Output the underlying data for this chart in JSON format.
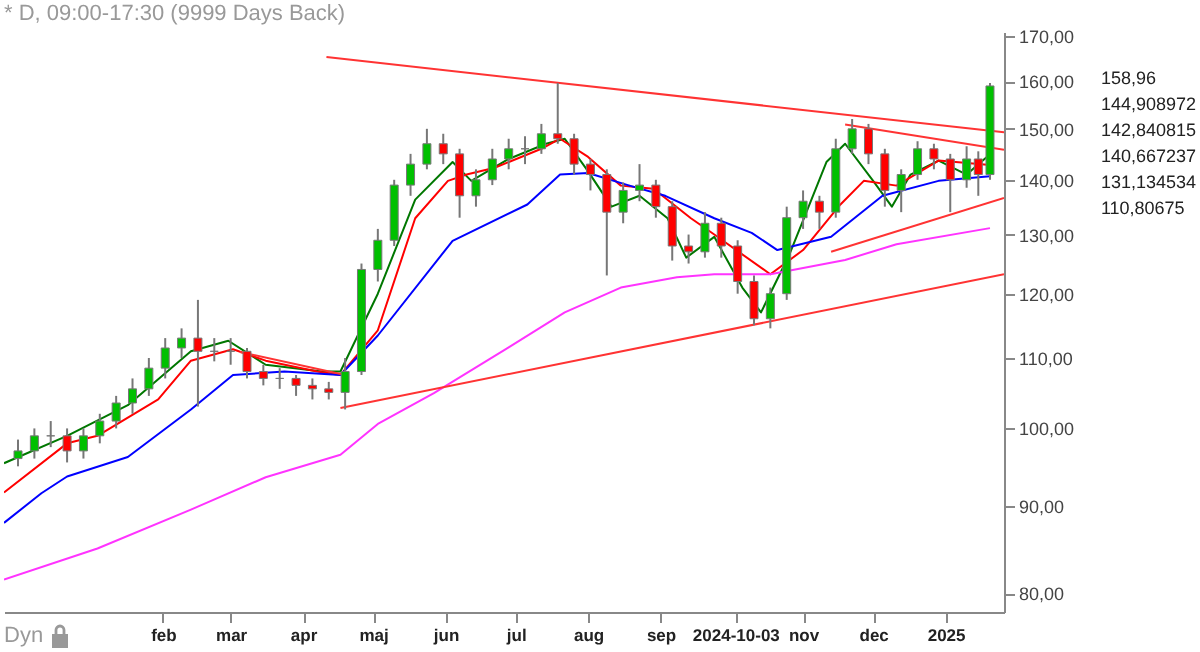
{
  "chart_data": {
    "type": "candlestick",
    "title": "* D, 09:00-17:30 (9999 Days Back)",
    "x": [
      "2023-12-01",
      "2023-12-08",
      "2023-12-15",
      "2023-12-22",
      "2023-12-29",
      "2024-01-05",
      "2024-01-12",
      "2024-01-19",
      "2024-01-26",
      "2024-02-02",
      "2024-02-09",
      "2024-02-16",
      "2024-02-23",
      "2024-03-01",
      "2024-03-08",
      "2024-03-15",
      "2024-03-22",
      "2024-03-29",
      "2024-04-05",
      "2024-04-12",
      "2024-04-19",
      "2024-04-26",
      "2024-05-03",
      "2024-05-10",
      "2024-05-17",
      "2024-05-24",
      "2024-05-31",
      "2024-06-07",
      "2024-06-14",
      "2024-06-21",
      "2024-06-28",
      "2024-07-05",
      "2024-07-12",
      "2024-07-19",
      "2024-07-26",
      "2024-08-02",
      "2024-08-09",
      "2024-08-16",
      "2024-08-23",
      "2024-08-30",
      "2024-09-06",
      "2024-09-13",
      "2024-09-20",
      "2024-09-27",
      "2024-10-04",
      "2024-10-11",
      "2024-10-18",
      "2024-10-25",
      "2024-11-01",
      "2024-11-08",
      "2024-11-15",
      "2024-11-22",
      "2024-11-29",
      "2024-12-06",
      "2024-12-13",
      "2024-12-20",
      "2024-12-27",
      "2025-01-03",
      "2025-01-10",
      "2025-01-15",
      "2025-01-20"
    ],
    "ohlc": [
      [
        96,
        98.5,
        95,
        97
      ],
      [
        97,
        100,
        96,
        99
      ],
      [
        99,
        101,
        97.5,
        99
      ],
      [
        99,
        100,
        95.5,
        97
      ],
      [
        97,
        100,
        96,
        99
      ],
      [
        99,
        102,
        98,
        101
      ],
      [
        101,
        104.5,
        100,
        103.5
      ],
      [
        103.5,
        107,
        102,
        105.5
      ],
      [
        105.5,
        110,
        104.5,
        108.5
      ],
      [
        108.5,
        113,
        107,
        111.5
      ],
      [
        111.5,
        114.5,
        110,
        113
      ],
      [
        113,
        119,
        103,
        111
      ],
      [
        111,
        113,
        109.5,
        111
      ],
      [
        111,
        113,
        109,
        111
      ],
      [
        111,
        111.5,
        107,
        108
      ],
      [
        108,
        109,
        106,
        107
      ],
      [
        107,
        108.5,
        105.5,
        107
      ],
      [
        107,
        107.5,
        104.5,
        106
      ],
      [
        106,
        107,
        104,
        105.5
      ],
      [
        105.5,
        106.5,
        104,
        105
      ],
      [
        105,
        110,
        102.6,
        108
      ],
      [
        108,
        125,
        107.5,
        124
      ],
      [
        124,
        131,
        122,
        129
      ],
      [
        129,
        140,
        128,
        139
      ],
      [
        139,
        145,
        137,
        143
      ],
      [
        143,
        150,
        142,
        147
      ],
      [
        147,
        149,
        143,
        145
      ],
      [
        145,
        146,
        133,
        137
      ],
      [
        137,
        142,
        135,
        140
      ],
      [
        140,
        146,
        139,
        144
      ],
      [
        144,
        148,
        142,
        146
      ],
      [
        146,
        148.5,
        143,
        146
      ],
      [
        146,
        151,
        145,
        149
      ],
      [
        149,
        159.6,
        147,
        148
      ],
      [
        148,
        149,
        141,
        143
      ],
      [
        143,
        144,
        138,
        141
      ],
      [
        141,
        142,
        123,
        134
      ],
      [
        134,
        139.5,
        132,
        138
      ],
      [
        138,
        143,
        136,
        139
      ],
      [
        139,
        140,
        133,
        135
      ],
      [
        135,
        136,
        125.5,
        128
      ],
      [
        128,
        130,
        125,
        127
      ],
      [
        127,
        134,
        126,
        132
      ],
      [
        132,
        133,
        126,
        128
      ],
      [
        128,
        129,
        120,
        122
      ],
      [
        122,
        123,
        115,
        116
      ],
      [
        116,
        121,
        114.5,
        120
      ],
      [
        120,
        135,
        119,
        133
      ],
      [
        133,
        138,
        131,
        136
      ],
      [
        136,
        137,
        131,
        134
      ],
      [
        134,
        148,
        133,
        146
      ],
      [
        146,
        152,
        145,
        150
      ],
      [
        150,
        151,
        143,
        145
      ],
      [
        145,
        146,
        135,
        138
      ],
      [
        138,
        142,
        134,
        141
      ],
      [
        141,
        147.5,
        140,
        146
      ],
      [
        146,
        147,
        142,
        144
      ],
      [
        144,
        145,
        134,
        140
      ],
      [
        140,
        146.5,
        138.5,
        144
      ],
      [
        144,
        145.5,
        137,
        141
      ],
      [
        141,
        159.6,
        140,
        158.96
      ]
    ],
    "series": [
      {
        "type": "line",
        "color": "#007700",
        "x": [
          "2023-11-25",
          "2023-12-22",
          "2024-01-17",
          "2024-02-13",
          "2024-02-29",
          "2024-03-16",
          "2024-04-09",
          "2024-04-17",
          "2024-05-03",
          "2024-05-19",
          "2024-06-04",
          "2024-06-12",
          "2024-06-28",
          "2024-07-14",
          "2024-07-22",
          "2024-08-01",
          "2024-08-11",
          "2024-08-23",
          "2024-09-04",
          "2024-09-12",
          "2024-09-24",
          "2024-10-06",
          "2024-10-14",
          "2024-10-26",
          "2024-11-03",
          "2024-11-11",
          "2024-11-19",
          "2024-12-01",
          "2024-12-09",
          "2024-12-17",
          "2024-12-29",
          "2025-01-10",
          "2025-01-20"
        ],
        "values": [
          95.4,
          99,
          103.2,
          111,
          112.6,
          109,
          108,
          108,
          120,
          136.3,
          143.4,
          139.8,
          144,
          147,
          148,
          141.6,
          135,
          137,
          132.9,
          126,
          129.6,
          121,
          117,
          126.4,
          134.6,
          143.4,
          147,
          139.8,
          135,
          141,
          143.7,
          141,
          144.908972
        ]
      },
      {
        "type": "line",
        "color": "#ff0000",
        "x": [
          "2023-11-25",
          "2023-12-22",
          "2024-01-04",
          "2024-01-30",
          "2024-02-13",
          "2024-03-02",
          "2024-03-16",
          "2024-04-07",
          "2024-04-17",
          "2024-05-03",
          "2024-05-19",
          "2024-06-02",
          "2024-06-10",
          "2024-06-22",
          "2024-07-12",
          "2024-07-20",
          "2024-08-01",
          "2024-08-15",
          "2024-08-29",
          "2024-09-14",
          "2024-09-24",
          "2024-10-18",
          "2024-11-01",
          "2024-11-17",
          "2024-11-27",
          "2024-12-11",
          "2024-12-29",
          "2025-01-20"
        ],
        "values": [
          91.7,
          98,
          99,
          104,
          109.6,
          111.3,
          109.6,
          108,
          107.5,
          114.2,
          132.9,
          139.8,
          141,
          142.3,
          146,
          148,
          144.4,
          138.9,
          138.3,
          132.9,
          130,
          123.2,
          127.3,
          135.4,
          139.8,
          138.9,
          143.7,
          142.840815
        ]
      },
      {
        "type": "line",
        "color": "#0000ff",
        "x": [
          "2023-11-25",
          "2023-12-11",
          "2023-12-22",
          "2024-01-17",
          "2024-02-13",
          "2024-03-02",
          "2024-03-24",
          "2024-04-17",
          "2024-05-03",
          "2024-06-04",
          "2024-07-06",
          "2024-07-20",
          "2024-08-01",
          "2024-08-18",
          "2024-09-03",
          "2024-09-24",
          "2024-10-10",
          "2024-10-21",
          "2024-11-13",
          "2024-12-05",
          "2024-12-29",
          "2025-01-20"
        ],
        "values": [
          88,
          91.6,
          93.7,
          96.2,
          102.6,
          107.5,
          108,
          107.5,
          113.4,
          128.9,
          135.4,
          141,
          141.3,
          139,
          137,
          132.9,
          130.3,
          127.3,
          129.6,
          137,
          139.8,
          140.667237
        ]
      },
      {
        "type": "line",
        "color": "#ff33ff",
        "x": [
          "2023-11-25",
          "2024-01-04",
          "2024-02-13",
          "2024-03-16",
          "2024-04-17",
          "2024-05-03",
          "2024-05-27",
          "2024-06-28",
          "2024-07-22",
          "2024-08-15",
          "2024-09-08",
          "2024-09-24",
          "2024-10-18",
          "2024-11-19",
          "2024-12-11",
          "2025-01-20"
        ],
        "values": [
          81.5,
          85,
          89.6,
          93.6,
          96.5,
          100.6,
          104.9,
          111.6,
          117,
          121,
          122.7,
          123.2,
          123.2,
          125.6,
          128.3,
          131.134534
        ]
      },
      {
        "type": "line",
        "color": "#ff3333",
        "x": [
          "2024-04-11",
          "2025-01-26"
        ],
        "values": [
          165.3,
          149.3
        ]
      },
      {
        "type": "line",
        "color": "#ff3333",
        "x": [
          "2024-04-17",
          "2025-01-26"
        ],
        "values": [
          102.8,
          123.2
        ]
      },
      {
        "type": "line",
        "color": "#ff3333",
        "x": [
          "2024-11-19",
          "2025-01-26"
        ],
        "values": [
          150.9,
          145.8
        ]
      },
      {
        "type": "line",
        "color": "#ff3333",
        "x": [
          "2024-11-13",
          "2025-01-26"
        ],
        "values": [
          127,
          136.6
        ]
      },
      {
        "type": "line",
        "color": "#ff3333",
        "x": [
          "2024-03-05",
          "2024-04-19"
        ],
        "values": [
          110.9,
          107.5
        ]
      }
    ],
    "xlim": [
      "2023-11-25",
      "2025-01-26"
    ],
    "xticks": [
      {
        "value": "2024-02-01",
        "label": "feb"
      },
      {
        "value": "2024-03-01",
        "label": "mar"
      },
      {
        "value": "2024-04-01",
        "label": "apr"
      },
      {
        "value": "2024-05-01",
        "label": "maj"
      },
      {
        "value": "2024-06-01",
        "label": "jun"
      },
      {
        "value": "2024-07-01",
        "label": "jul"
      },
      {
        "value": "2024-08-01",
        "label": "aug"
      },
      {
        "value": "2024-09-01",
        "label": "sep"
      },
      {
        "value": "2024-10-03",
        "label": "2024-10-03"
      },
      {
        "value": "2024-11-01",
        "label": "nov"
      },
      {
        "value": "2024-12-01",
        "label": "dec"
      },
      {
        "value": "2025-01-01",
        "label": "2025"
      }
    ],
    "log": true,
    "ylim": [
      78,
      171
    ],
    "yticks": [
      {
        "value": 80,
        "label": "80,00"
      },
      {
        "value": 90,
        "label": "90,00"
      },
      {
        "value": 100,
        "label": "100,00"
      },
      {
        "value": 110,
        "label": "110,00"
      },
      {
        "value": 120,
        "label": "120,00"
      },
      {
        "value": 130,
        "label": "130,00"
      },
      {
        "value": 140,
        "label": "140,00"
      },
      {
        "value": 150,
        "label": "150,00"
      },
      {
        "value": 160,
        "label": "160,00"
      },
      {
        "value": 170,
        "label": "170,00"
      }
    ],
    "annotations": [
      "158,96",
      "144,908972",
      "142,840815",
      "140,667237",
      "131,134534",
      "110,80675",
      "Dyn"
    ]
  }
}
